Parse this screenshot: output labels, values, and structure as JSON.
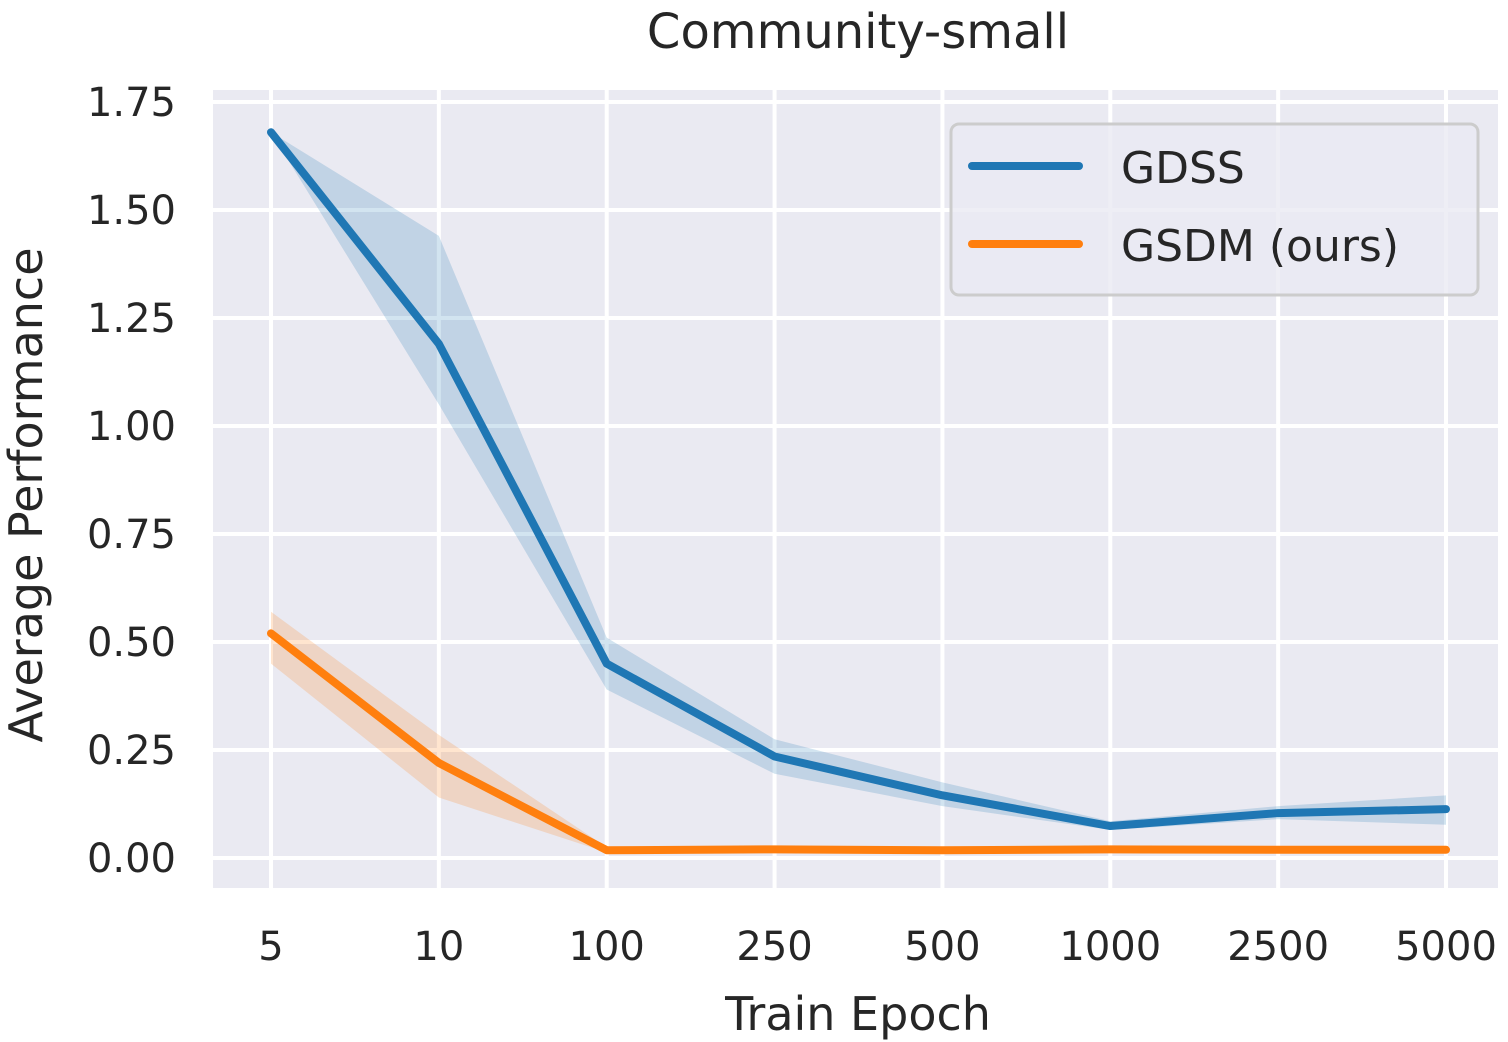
{
  "chart_data": {
    "type": "line",
    "title": "Community-small",
    "xlabel": "Train Epoch",
    "ylabel": "Average Performance",
    "categories": [
      "5",
      "10",
      "100",
      "250",
      "500",
      "1000",
      "2500",
      "5000"
    ],
    "ylim": [
      -0.07,
      1.77
    ],
    "yticks": [
      0.0,
      0.25,
      0.5,
      0.75,
      1.0,
      1.25,
      1.5,
      1.75
    ],
    "ytick_labels": [
      "0.00",
      "0.25",
      "0.50",
      "0.75",
      "1.00",
      "1.25",
      "1.50",
      "1.75"
    ],
    "grid": true,
    "legend_position": "top-right",
    "series": [
      {
        "name": "GDSS",
        "color": "#1f77b4",
        "values": [
          1.68,
          1.19,
          0.45,
          0.235,
          0.145,
          0.074,
          0.104,
          0.113
        ],
        "upper": [
          1.68,
          1.44,
          0.51,
          0.275,
          0.175,
          0.085,
          0.12,
          0.145
        ],
        "lower": [
          1.68,
          1.05,
          0.39,
          0.195,
          0.12,
          0.065,
          0.09,
          0.077
        ]
      },
      {
        "name": "GSDM (ours)",
        "color": "#ff7f0e",
        "values": [
          0.52,
          0.22,
          0.018,
          0.02,
          0.018,
          0.02,
          0.019,
          0.019
        ],
        "upper": [
          0.57,
          0.285,
          0.025,
          0.025,
          0.022,
          0.025,
          0.024,
          0.025
        ],
        "lower": [
          0.45,
          0.14,
          0.013,
          0.015,
          0.013,
          0.015,
          0.014,
          0.014
        ]
      }
    ]
  }
}
